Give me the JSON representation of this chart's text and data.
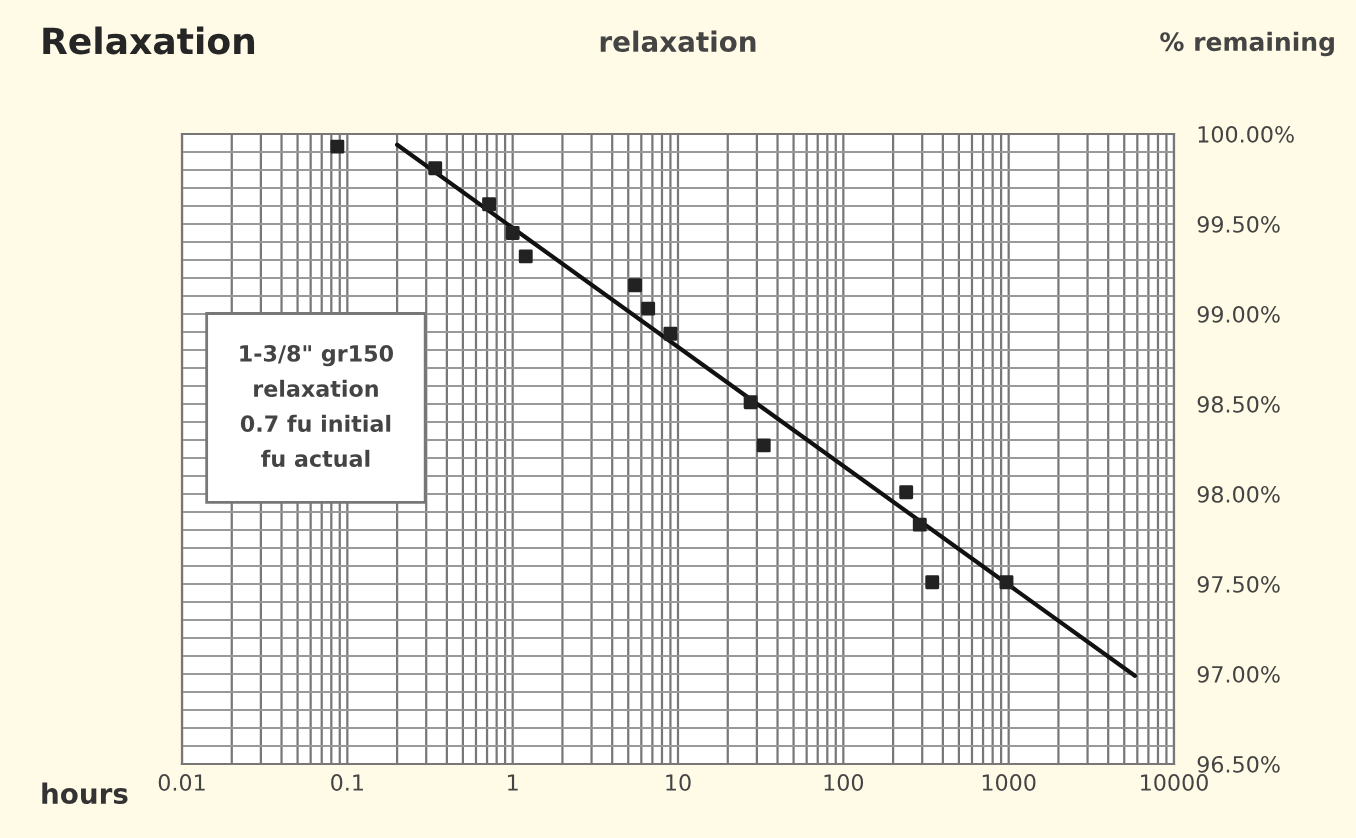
{
  "chart_data": {
    "type": "scatter",
    "title": "Relaxation",
    "subtitle": "relaxation",
    "xlabel": "hours",
    "ylabel": "% remaining",
    "log": "x",
    "grid": true,
    "legend": false,
    "xlim": [
      0.01,
      10000
    ],
    "xticks": [
      0.01,
      0.1,
      1,
      10,
      100,
      1000,
      10000
    ],
    "ylim": [
      96.5,
      100
    ],
    "yticks": [
      {
        "value": 96.5,
        "label": "96.50%"
      },
      {
        "value": 97,
        "label": "97.00%"
      },
      {
        "value": 97.5,
        "label": "97.50%"
      },
      {
        "value": 98,
        "label": "98.00%"
      },
      {
        "value": 98.5,
        "label": "98.50%"
      },
      {
        "value": 99,
        "label": "99.00%"
      },
      {
        "value": 99.5,
        "label": "99.50%"
      },
      {
        "value": 100,
        "label": "100.00%"
      }
    ],
    "annotations": [
      "1-3/8\" gr150\nrelaxation\n0.7 fu initial\nfu actual"
    ],
    "series": [
      {
        "marker": "square",
        "color": "#222222",
        "x": [
          0.087,
          0.34,
          0.72,
          1.0,
          1.2,
          5.5,
          6.6,
          9.0,
          27.5,
          33,
          240,
          290,
          345,
          970
        ],
        "values": [
          99.93,
          99.81,
          99.61,
          99.45,
          99.32,
          99.16,
          99.03,
          98.89,
          98.51,
          98.27,
          98.01,
          97.83,
          97.51,
          97.51
        ]
      },
      {
        "type": "line",
        "marker": "none",
        "color": "#111111",
        "x": [
          0.2,
          5800
        ],
        "values": [
          99.94,
          96.99
        ]
      }
    ]
  }
}
